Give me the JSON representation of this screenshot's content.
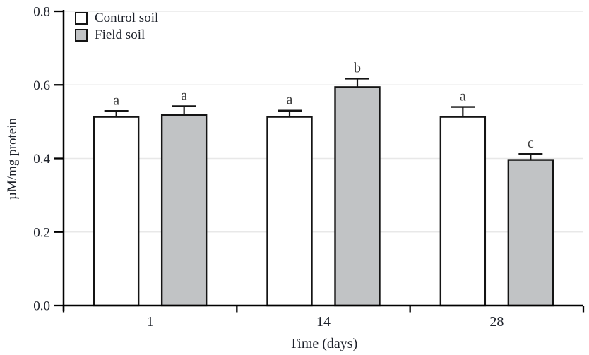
{
  "chart_data": {
    "type": "bar",
    "title": "",
    "xlabel": "Time (days)",
    "ylabel": "µM/mg protein",
    "categories": [
      "1",
      "14",
      "28"
    ],
    "series": [
      {
        "name": "Control soil",
        "fill": "#ffffff",
        "values": [
          0.513,
          0.513,
          0.513
        ],
        "errors": [
          0.016,
          0.017,
          0.027
        ],
        "letters": [
          "a",
          "a",
          "a"
        ]
      },
      {
        "name": "Field soil",
        "fill": "#c1c3c5",
        "values": [
          0.518,
          0.594,
          0.396
        ],
        "errors": [
          0.024,
          0.023,
          0.016
        ],
        "letters": [
          "a",
          "b",
          "c"
        ]
      }
    ],
    "ylim": [
      0,
      0.8
    ],
    "yticks": [
      0,
      0.2,
      0.4,
      0.6,
      0.8
    ],
    "ytick_labels": [
      "0.0",
      "0.2",
      "0.4",
      "0.6",
      "0.8"
    ],
    "grid": true,
    "legend_position": "top-left",
    "colors": {
      "bar_stroke": "#141414",
      "axis": "#000000",
      "grid": "#e8e8e8",
      "text": "#1d212a",
      "letter": "#3c3c3c"
    }
  }
}
